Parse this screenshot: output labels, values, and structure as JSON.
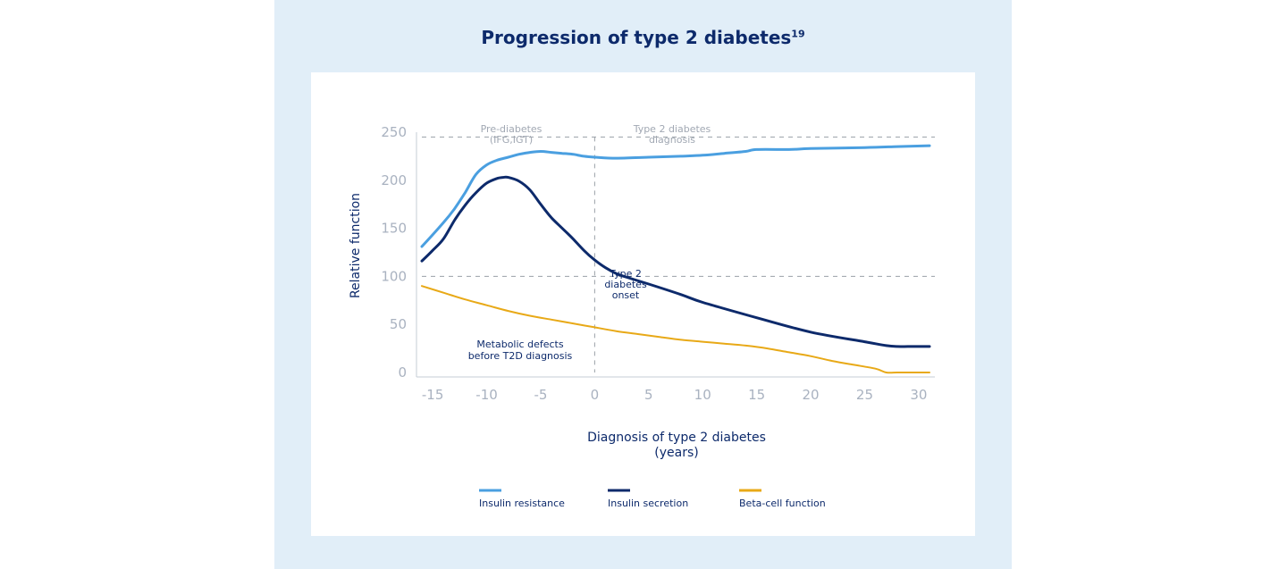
{
  "title": "Progression of type 2 diabetes",
  "title_ref": "19",
  "chart_data": {
    "type": "line",
    "xlabel": "Diagnosis of type 2 diabetes",
    "xlabel_unit": "(years)",
    "ylabel": "Relative function",
    "xlim": [
      -16.5,
      31.5
    ],
    "ylim": [
      0,
      250
    ],
    "xticks": [
      -15,
      -10,
      -5,
      0,
      5,
      10,
      15,
      20,
      25,
      30
    ],
    "yticks": [
      0,
      50,
      100,
      150,
      200,
      250
    ],
    "reference_lines": [
      {
        "axis": "y",
        "value": 245
      },
      {
        "axis": "y",
        "value": 100
      },
      {
        "axis": "x",
        "value": 0
      }
    ],
    "annotations": {
      "prediabetes": [
        "Pre-diabetes",
        "(IFG,IGT)"
      ],
      "t2d_diagnosis": [
        "Type 2 diabetes",
        "diagnosis"
      ],
      "t2d_onset": [
        "Type 2",
        "diabetes",
        "onset"
      ],
      "metabolic": [
        "Metabolic defects",
        "before T2D diagnosis"
      ]
    },
    "legend_position": "bottom",
    "series": [
      {
        "name": "Insulin resistance",
        "color": "#4a9fe0",
        "x": [
          -16,
          -14,
          -13,
          -12,
          -11,
          -10,
          -9,
          -8,
          -7,
          -6,
          -5,
          -4,
          -3,
          -2,
          -1,
          0,
          2,
          5,
          8,
          10,
          12,
          14,
          15,
          18,
          20,
          25,
          28,
          31
        ],
        "y": [
          131,
          156,
          170,
          187,
          206,
          216,
          221,
          224,
          227,
          229,
          230,
          229,
          228,
          227,
          225,
          224,
          223,
          224,
          225,
          226,
          228,
          230,
          232,
          232,
          233,
          234,
          235,
          236
        ]
      },
      {
        "name": "Insulin secretion",
        "color": "#0d2a6b",
        "x": [
          -16,
          -15,
          -14,
          -13,
          -12,
          -11,
          -10,
          -9,
          -8.5,
          -8,
          -7,
          -6,
          -5,
          -4,
          -3,
          -2,
          -1,
          0,
          1,
          2,
          3,
          5,
          8,
          10,
          15,
          20,
          25,
          27,
          28,
          29,
          30,
          31
        ],
        "y": [
          116,
          127,
          139,
          158,
          174,
          187,
          197,
          202,
          203,
          203,
          199,
          190,
          175,
          161,
          150,
          139,
          127,
          117,
          109,
          103,
          99,
          92,
          81,
          73,
          57,
          42,
          32,
          28,
          27,
          27,
          27,
          27
        ]
      },
      {
        "name": "Beta-cell function",
        "color": "#e8a917",
        "x": [
          -16,
          -14,
          -12,
          -10,
          -8,
          -6,
          -4,
          -2,
          0,
          2,
          4,
          6,
          8,
          10,
          12,
          14,
          16,
          18,
          20,
          22,
          24,
          26,
          27,
          28,
          29,
          30,
          31
        ],
        "y": [
          90,
          83,
          76,
          70,
          64,
          59,
          55,
          51,
          47,
          43,
          40,
          37,
          34,
          32,
          30,
          28,
          25,
          21,
          17,
          12,
          8,
          4,
          0,
          0,
          0,
          0,
          0
        ]
      }
    ]
  }
}
